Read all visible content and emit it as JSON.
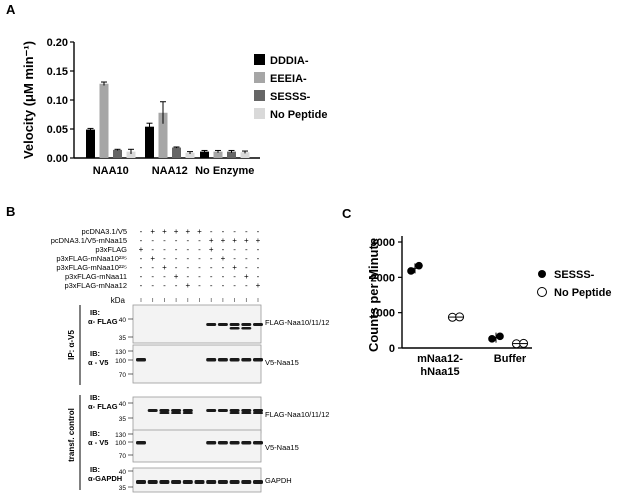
{
  "panel_a": {
    "letter": "A",
    "ylabel": "Velocity (μM min⁻¹)",
    "yticks": [
      "0.00",
      "0.05",
      "0.10",
      "0.15",
      "0.20"
    ],
    "groups": [
      "NAA10",
      "NAA12",
      "No Enzyme"
    ],
    "legend": [
      "DDDIA-",
      "EEEIA-",
      "SESSS-",
      "No Peptide"
    ]
  },
  "panel_b": {
    "letter": "B",
    "row_labels": [
      "pcDNA3.1/V5",
      "pcDNA3.1/V5-mNaa15",
      "p3xFLAG",
      "p3xFLAG-mNaa10²³⁵",
      "p3xFLAG-mNaa10²²⁵",
      "p3xFLAG-mNaa11",
      "p3xFLAG-mNaa12"
    ],
    "signs": [
      [
        "-",
        "+",
        "+",
        "+",
        "+",
        "+",
        "-",
        "-",
        "-",
        "-",
        "-"
      ],
      [
        "-",
        "-",
        "-",
        "-",
        "-",
        "-",
        "+",
        "+",
        "+",
        "+",
        "+"
      ],
      [
        "+",
        "-",
        "-",
        "-",
        "-",
        "-",
        "+",
        "-",
        "-",
        "-",
        "-"
      ],
      [
        "-",
        "+",
        "-",
        "-",
        "-",
        "-",
        "-",
        "+",
        "-",
        "-",
        "-"
      ],
      [
        "-",
        "-",
        "+",
        "-",
        "-",
        "-",
        "-",
        "-",
        "+",
        "-",
        "-"
      ],
      [
        "-",
        "-",
        "-",
        "+",
        "-",
        "-",
        "-",
        "-",
        "-",
        "+",
        "-"
      ],
      [
        "-",
        "-",
        "-",
        "-",
        "+",
        "-",
        "-",
        "-",
        "-",
        "-",
        "+"
      ]
    ],
    "kda": "kDa",
    "section_ip": "IP: α-V5",
    "section_transf": "transf. control",
    "blots": [
      {
        "ib": "IB:",
        "ab": "α- FLAG",
        "markers": [
          "40",
          "35"
        ],
        "band": "FLAG-Naa10/11/12"
      },
      {
        "ib": "IB:",
        "ab": "α - V5",
        "markers": [
          "130",
          "100",
          "70"
        ],
        "band": "V5-Naa15"
      },
      {
        "ib": "IB:",
        "ab": "α- FLAG",
        "markers": [
          "40",
          "35"
        ],
        "band": "FLAG-Naa10/11/12"
      },
      {
        "ib": "IB:",
        "ab": "α - V5",
        "markers": [
          "130",
          "100",
          "70"
        ],
        "band": "V5-Naa15"
      },
      {
        "ib": "IB:",
        "ab": "α-GAPDH",
        "markers": [
          "40",
          "35"
        ],
        "band": "GAPDH"
      }
    ]
  },
  "panel_c": {
    "letter": "C",
    "ylabel": "Counts per Minute",
    "yticks": [
      "0",
      "1000",
      "2000",
      "3000"
    ],
    "groups": [
      "mNaa12-",
      "hNaa15",
      "Buffer"
    ],
    "legend": [
      "SESSS-",
      "No Peptide"
    ]
  },
  "chart_data": [
    {
      "type": "bar",
      "categories": [
        "NAA10",
        "NAA12",
        "No Enzyme"
      ],
      "series": [
        {
          "name": "DDDIA-",
          "values": [
            0.049,
            0.054,
            0.011
          ],
          "errors": [
            0.002,
            0.006,
            0.002
          ]
        },
        {
          "name": "EEEIA-",
          "values": [
            0.128,
            0.078,
            0.011
          ],
          "errors": [
            0.003,
            0.019,
            0.002
          ]
        },
        {
          "name": "SESSS-",
          "values": [
            0.014,
            0.018,
            0.011
          ],
          "errors": [
            0.001,
            0.001,
            0.002
          ]
        },
        {
          "name": "No Peptide",
          "values": [
            0.011,
            0.009,
            0.01
          ],
          "errors": [
            0.004,
            0.002,
            0.002
          ]
        }
      ],
      "ylabel": "Velocity (μM min⁻¹)",
      "ylim": [
        0,
        0.2
      ],
      "colors": [
        "#000000",
        "#a6a6a6",
        "#666666",
        "#d9d9d9"
      ],
      "legend": "right"
    },
    {
      "type": "scatter",
      "categories": [
        "mNaa12-hNaa15",
        "Buffer"
      ],
      "series": [
        {
          "name": "SESSS-",
          "marker": "filled",
          "points": [
            [
              0,
              2180
            ],
            [
              0,
              2330
            ],
            [
              1,
              260
            ],
            [
              1,
              330
            ]
          ]
        },
        {
          "name": "No Peptide",
          "marker": "open",
          "points": [
            [
              0,
              870
            ],
            [
              0,
              880
            ],
            [
              1,
              120
            ],
            [
              1,
              130
            ]
          ]
        }
      ],
      "means": {
        "SESSS-": [
          2255,
          295
        ],
        "No Peptide": [
          875,
          125
        ]
      },
      "ylabel": "Counts per Minute",
      "ylim": [
        0,
        3000
      ],
      "legend": "right"
    }
  ]
}
